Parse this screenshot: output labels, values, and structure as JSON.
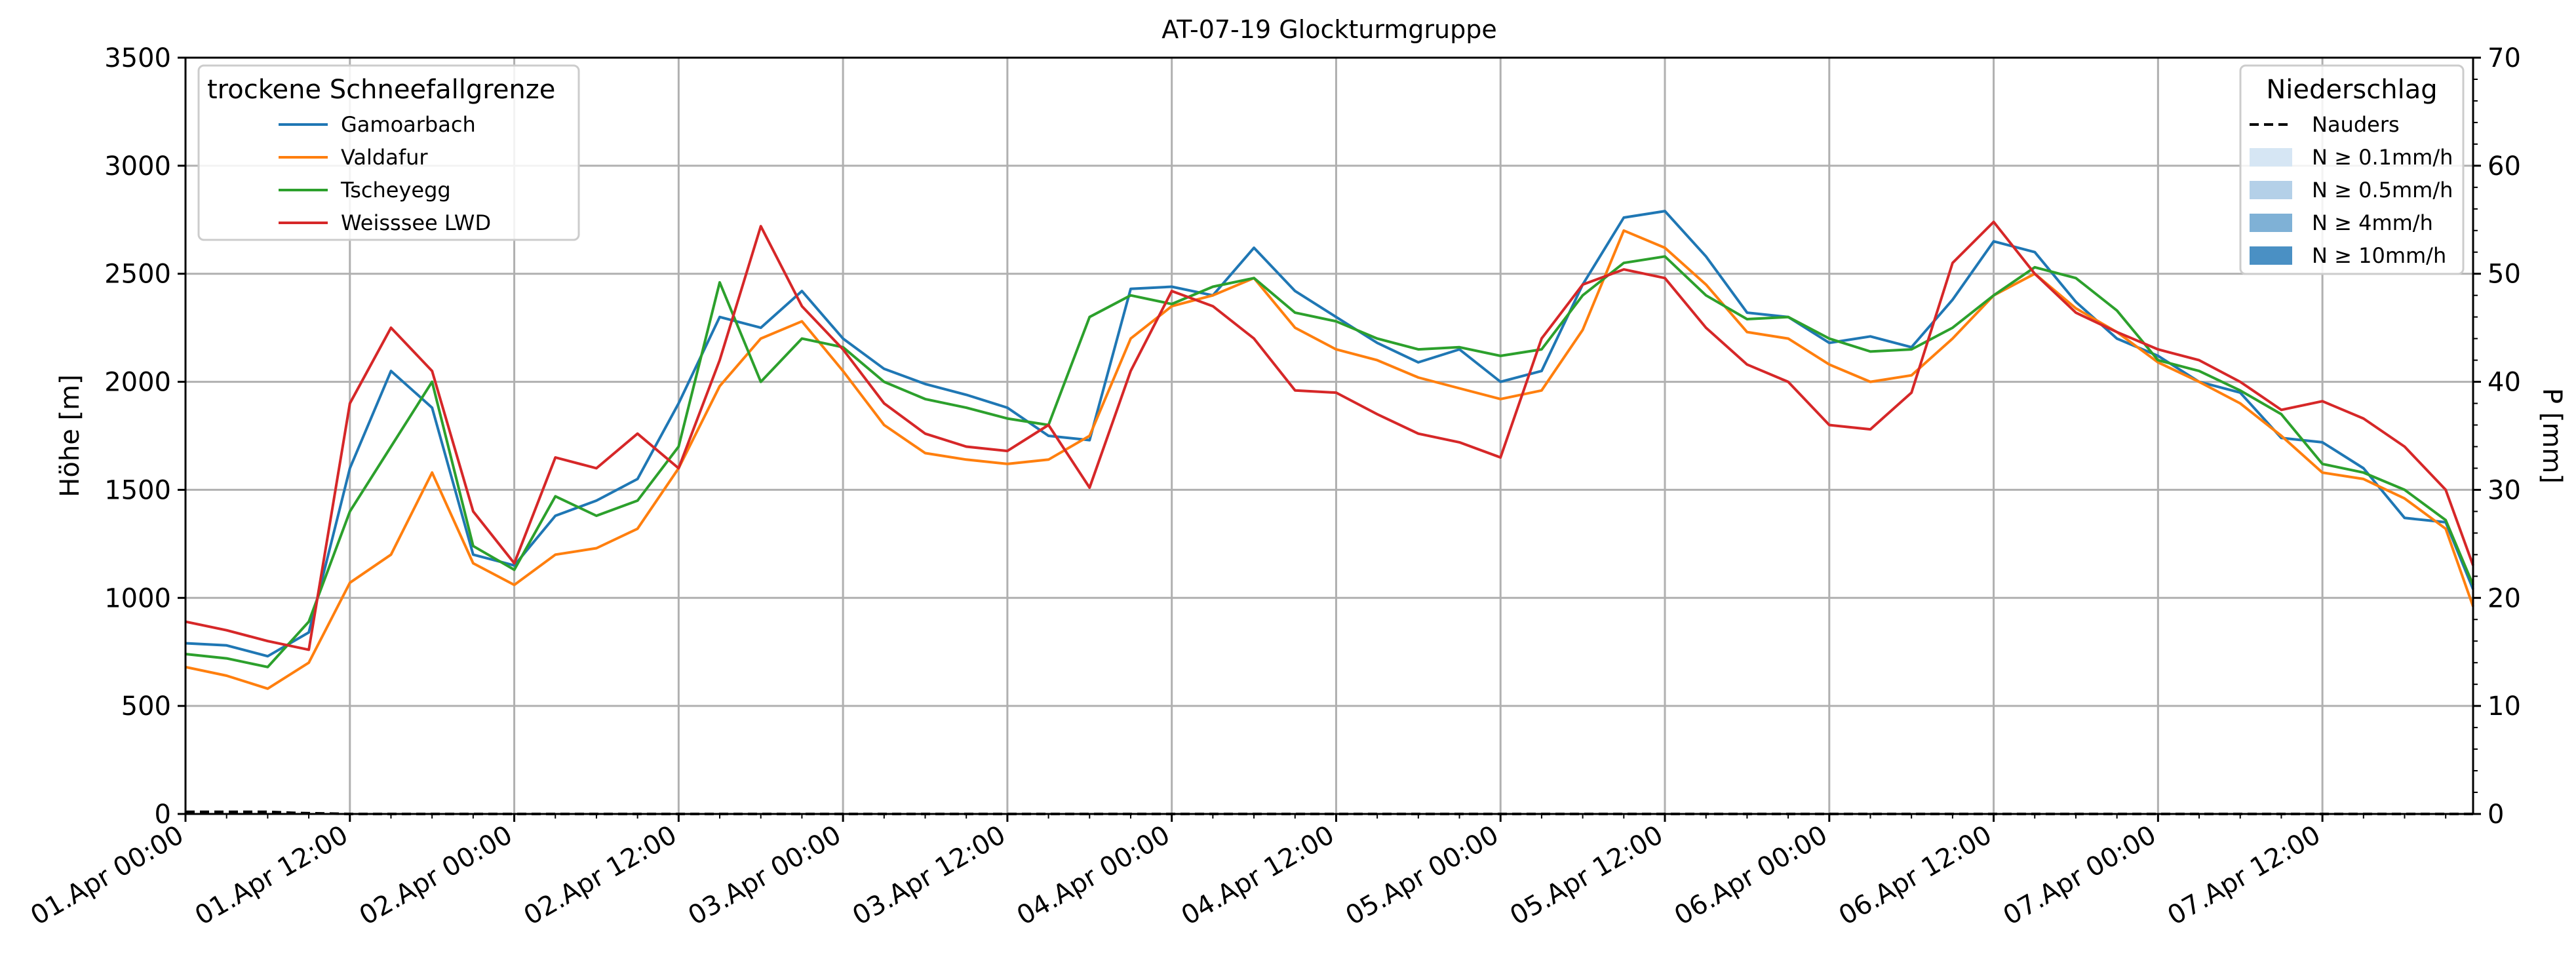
{
  "chart_data": {
    "type": "line",
    "title": "AT-07-19 Glockturmgruppe",
    "ylabel": "Höhe [m]",
    "y2label": "P [mm]",
    "ylim": [
      0,
      3500
    ],
    "y2lim": [
      0,
      70
    ],
    "yticks": [
      "0",
      "500",
      "1000",
      "1500",
      "2000",
      "2500",
      "3000",
      "3500"
    ],
    "y2ticks": [
      "0",
      "10",
      "20",
      "30",
      "40",
      "50",
      "60",
      "70"
    ],
    "xrange_hours": [
      0,
      167
    ],
    "xticks": [
      "01.Apr 00:00",
      "01.Apr 12:00",
      "02.Apr 00:00",
      "02.Apr 12:00",
      "03.Apr 00:00",
      "03.Apr 12:00",
      "04.Apr 00:00",
      "04.Apr 12:00",
      "05.Apr 00:00",
      "05.Apr 12:00",
      "06.Apr 00:00",
      "06.Apr 12:00",
      "07.Apr 00:00",
      "07.Apr 12:00"
    ],
    "grid": true,
    "legend_left": {
      "title": "trockene Schneefallgrenze",
      "placement": "top-left"
    },
    "legend_right": {
      "title": "Niederschlag",
      "placement": "top-right",
      "items": [
        {
          "label": "Nauders",
          "style": "dashed-line",
          "color": "#000000"
        },
        {
          "label": "N ≥ 0.1mm/h",
          "style": "patch",
          "color": "#d6e6f4"
        },
        {
          "label": "N ≥ 0.5mm/h",
          "style": "patch",
          "color": "#b4d0e8"
        },
        {
          "label": "N ≥ 4mm/h",
          "style": "patch",
          "color": "#7fb1d6"
        },
        {
          "label": "N ≥ 10mm/h",
          "style": "patch",
          "color": "#4a90c4"
        }
      ]
    },
    "precip_series": {
      "name": "Nauders",
      "axis": "right",
      "x": [
        0,
        2,
        4,
        6,
        8,
        12,
        24,
        48,
        72,
        96,
        120,
        144,
        167
      ],
      "values": [
        0.2,
        0.2,
        0.2,
        0.2,
        0.1,
        0,
        0,
        0,
        0,
        0,
        0,
        0,
        0
      ]
    },
    "x": [
      0,
      3,
      6,
      9,
      12,
      15,
      18,
      21,
      24,
      27,
      30,
      33,
      36,
      39,
      42,
      45,
      48,
      51,
      54,
      57,
      60,
      63,
      66,
      69,
      72,
      75,
      78,
      81,
      84,
      87,
      90,
      93,
      96,
      99,
      102,
      105,
      108,
      111,
      114,
      117,
      120,
      123,
      126,
      129,
      132,
      135,
      138,
      141,
      144,
      147,
      150,
      153,
      156,
      159,
      162,
      165,
      167
    ],
    "series": [
      {
        "name": "Gamoarbach",
        "color": "#1f77b4",
        "values": [
          790,
          780,
          730,
          840,
          1600,
          2050,
          1880,
          1200,
          1150,
          1380,
          1450,
          1550,
          1900,
          2300,
          2250,
          2420,
          2200,
          2060,
          1990,
          1940,
          1880,
          1750,
          1730,
          2430,
          2440,
          2400,
          2620,
          2420,
          2300,
          2180,
          2090,
          2150,
          2000,
          2050,
          2450,
          2760,
          2790,
          2580,
          2320,
          2300,
          2180,
          2210,
          2160,
          2380,
          2650,
          2600,
          2370,
          2200,
          2120,
          2000,
          1950,
          1740,
          1720,
          1600,
          1370,
          1350,
          1040
        ]
      },
      {
        "name": "Valdafur",
        "color": "#ff7f0e",
        "values": [
          680,
          640,
          580,
          700,
          1070,
          1200,
          1580,
          1160,
          1060,
          1200,
          1230,
          1320,
          1600,
          1980,
          2200,
          2280,
          2050,
          1800,
          1670,
          1640,
          1620,
          1640,
          1750,
          2200,
          2350,
          2400,
          2480,
          2250,
          2150,
          2100,
          2020,
          1970,
          1920,
          1960,
          2240,
          2700,
          2620,
          2450,
          2230,
          2200,
          2080,
          2000,
          2030,
          2200,
          2400,
          2500,
          2340,
          2230,
          2090,
          2000,
          1900,
          1750,
          1580,
          1550,
          1460,
          1320,
          960
        ]
      },
      {
        "name": "Tscheyegg",
        "color": "#2ca02c",
        "values": [
          740,
          720,
          680,
          890,
          1400,
          1700,
          2000,
          1240,
          1130,
          1470,
          1380,
          1450,
          1700,
          2460,
          2000,
          2200,
          2160,
          2000,
          1920,
          1880,
          1830,
          1800,
          2300,
          2400,
          2360,
          2440,
          2480,
          2320,
          2280,
          2200,
          2150,
          2160,
          2120,
          2150,
          2400,
          2550,
          2580,
          2400,
          2290,
          2300,
          2200,
          2140,
          2150,
          2250,
          2400,
          2530,
          2480,
          2330,
          2100,
          2050,
          1960,
          1850,
          1620,
          1580,
          1500,
          1360,
          1060
        ]
      },
      {
        "name": "Weisssee LWD",
        "color": "#d62728",
        "values": [
          890,
          850,
          800,
          760,
          1900,
          2250,
          2050,
          1400,
          1160,
          1650,
          1600,
          1760,
          1600,
          2100,
          2720,
          2350,
          2150,
          1900,
          1760,
          1700,
          1680,
          1800,
          1510,
          2050,
          2420,
          2350,
          2200,
          1960,
          1950,
          1850,
          1760,
          1720,
          1650,
          2200,
          2450,
          2520,
          2480,
          2250,
          2080,
          2000,
          1800,
          1780,
          1950,
          2550,
          2740,
          2500,
          2320,
          2230,
          2150,
          2100,
          2000,
          1870,
          1910,
          1830,
          1700,
          1500,
          1150
        ]
      }
    ]
  }
}
